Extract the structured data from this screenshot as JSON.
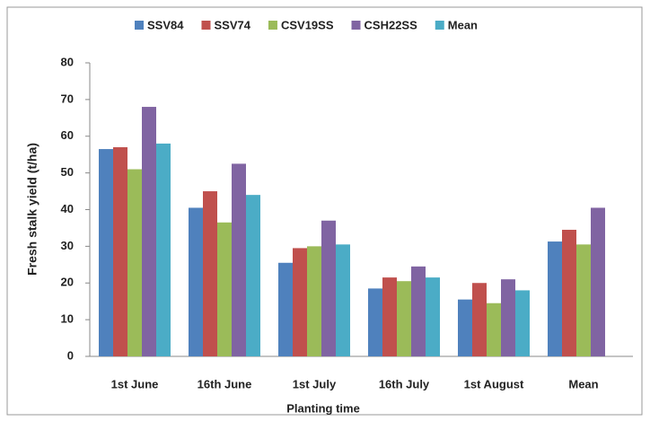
{
  "chart_data": {
    "type": "bar",
    "x_label": "Planting time",
    "y_label": "Fresh stalk yield (t/ha)",
    "categories": [
      "1st June",
      "16th June",
      "1st July",
      "16th July",
      "1st August",
      "Mean"
    ],
    "series": [
      {
        "name": "SSV84",
        "color": "#4f81bd",
        "values": [
          56.5,
          40.5,
          25.5,
          18.5,
          15.5,
          31.3
        ]
      },
      {
        "name": "SSV74",
        "color": "#c0504d",
        "values": [
          57,
          45,
          29.5,
          21.5,
          20,
          34.5
        ]
      },
      {
        "name": "CSV19SS",
        "color": "#9bbb59",
        "values": [
          51,
          36.5,
          30,
          20.5,
          14.5,
          30.5
        ]
      },
      {
        "name": "CSH22SS",
        "color": "#8064a2",
        "values": [
          68,
          52.5,
          37,
          24.5,
          21,
          40.5
        ]
      },
      {
        "name": "Mean",
        "color": "#4bacc6",
        "values": [
          58,
          44,
          30.5,
          21.5,
          18,
          null
        ]
      }
    ],
    "ylim": [
      0,
      80
    ],
    "yticks": [
      0,
      10,
      20,
      30,
      40,
      50,
      60,
      70,
      80
    ],
    "grid": false,
    "legend": "top"
  }
}
